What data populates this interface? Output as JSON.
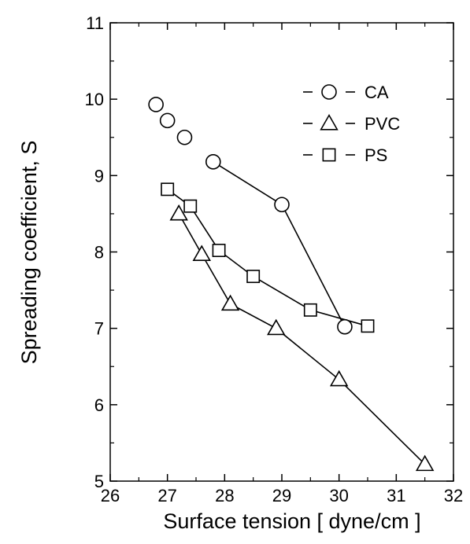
{
  "chart_data": {
    "type": "line",
    "title": "",
    "xlabel": "Surface tension [ dyne/cm ]",
    "ylabel": "Spreading coefficient, S",
    "xlim": [
      26,
      32
    ],
    "ylim": [
      5,
      11
    ],
    "xticks": [
      "26",
      "27",
      "28",
      "29",
      "30",
      "31",
      "32"
    ],
    "yticks": [
      "5",
      "6",
      "7",
      "8",
      "9",
      "10",
      "11"
    ],
    "grid": false,
    "legend_position": "top-right",
    "series": [
      {
        "name": "CA",
        "marker": "circle",
        "legend_label": "CA",
        "x": [
          26.8,
          27.0,
          27.3,
          27.8,
          29.0,
          30.1
        ],
        "y": [
          9.93,
          9.72,
          9.5,
          9.18,
          8.62,
          7.02
        ]
      },
      {
        "name": "PVC",
        "marker": "triangle",
        "legend_label": "PVC",
        "x": [
          27.2,
          27.6,
          28.1,
          28.9,
          30.0,
          31.5
        ],
        "y": [
          8.5,
          7.97,
          7.32,
          7.0,
          6.33,
          5.22
        ]
      },
      {
        "name": "PS",
        "marker": "square",
        "legend_label": "PS",
        "x": [
          27.0,
          27.4,
          27.9,
          28.5,
          29.5,
          30.5
        ],
        "y": [
          8.82,
          8.6,
          8.02,
          7.68,
          7.24,
          7.03
        ]
      }
    ],
    "line_connections": {
      "CA": [
        [
          27.8,
          9.18
        ],
        [
          29.0,
          8.62
        ],
        [
          30.1,
          7.02
        ]
      ]
    },
    "colors": {
      "ink": "#000000",
      "background": "#ffffff"
    }
  }
}
